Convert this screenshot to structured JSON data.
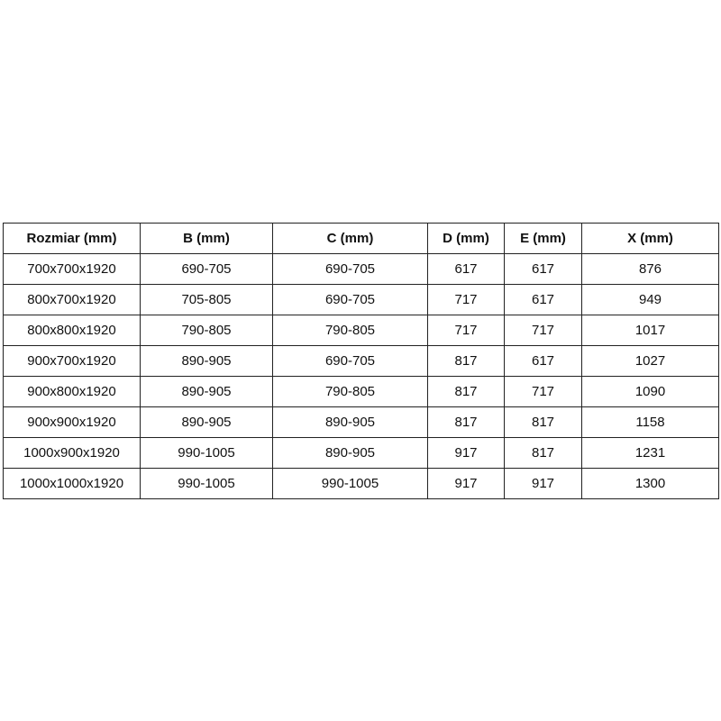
{
  "table": {
    "headers": [
      "Rozmiar (mm)",
      "B (mm)",
      "C (mm)",
      "D (mm)",
      "E (mm)",
      "X (mm)"
    ],
    "rows": [
      [
        "700x700x1920",
        "690-705",
        "690-705",
        "617",
        "617",
        "876"
      ],
      [
        "800x700x1920",
        "705-805",
        "690-705",
        "717",
        "617",
        "949"
      ],
      [
        "800x800x1920",
        "790-805",
        "790-805",
        "717",
        "717",
        "1017"
      ],
      [
        "900x700x1920",
        "890-905",
        "690-705",
        "817",
        "617",
        "1027"
      ],
      [
        "900x800x1920",
        "890-905",
        "790-805",
        "817",
        "717",
        "1090"
      ],
      [
        "900x900x1920",
        "890-905",
        "890-905",
        "817",
        "817",
        "1158"
      ],
      [
        "1000x900x1920",
        "990-1005",
        "890-905",
        "917",
        "817",
        "1231"
      ],
      [
        "1000x1000x1920",
        "990-1005",
        "990-1005",
        "917",
        "917",
        "1300"
      ]
    ]
  }
}
